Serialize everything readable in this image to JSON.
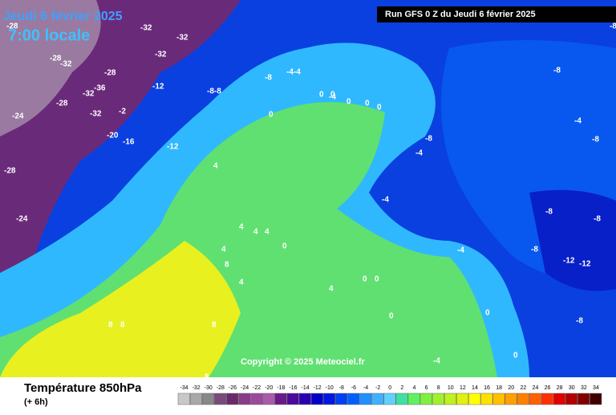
{
  "header": {
    "date": "Jeudi 6 février 2025",
    "time": "7:00 locale",
    "run": "Run GFS 0 Z du Jeudi 6 février 2025"
  },
  "map": {
    "copyright": "Copyright © 2025 Meteociel.fr",
    "isotherm_labels": [
      "-28",
      "-32",
      "-32",
      "-28",
      "-32",
      "-32",
      "-28",
      "-36",
      "-32",
      "-28",
      "-24",
      "-32",
      "-2",
      "-20",
      "-16",
      "-12",
      "-12",
      "-8-8",
      "-8",
      "-4-4",
      "-4",
      "-28",
      "-24",
      "0",
      "0",
      "0",
      "0",
      "0",
      "0",
      "4",
      "4",
      "4",
      "4",
      "0",
      "-4",
      "-4",
      "-8",
      "-4",
      "-8",
      "-8",
      "-12",
      "-12",
      "-8",
      "-8",
      "-4",
      "0",
      "4",
      "4",
      "8",
      "8",
      "8",
      "8",
      "8",
      "-4",
      "0",
      "0",
      "-8",
      "-8",
      "-8",
      "4",
      "0",
      "0"
    ]
  },
  "footer": {
    "title": "Température 850hPa",
    "step": "(+ 6h)"
  },
  "legend": {
    "labels": [
      -34,
      -32,
      -30,
      -28,
      -26,
      -24,
      -22,
      -20,
      -18,
      -16,
      -14,
      -12,
      -10,
      -8,
      -6,
      -4,
      -2,
      0,
      2,
      4,
      6,
      8,
      10,
      12,
      14,
      16,
      18,
      20,
      22,
      24,
      26,
      28,
      30,
      32,
      34
    ],
    "colors": [
      "#c8c8c8",
      "#a8a8a8",
      "#888888",
      "#7a4a7a",
      "#6a2a6a",
      "#8a3a8a",
      "#9a4a9a",
      "#aa5aaa",
      "#6a1a8a",
      "#4a0a9a",
      "#2a00b0",
      "#0000c8",
      "#0018e0",
      "#0040f0",
      "#0060ff",
      "#2090ff",
      "#40b0ff",
      "#60d0ff",
      "#40e0a0",
      "#60f060",
      "#80f040",
      "#a0f030",
      "#c0f020",
      "#e0f010",
      "#ffff00",
      "#ffe000",
      "#ffc000",
      "#ffa000",
      "#ff8000",
      "#ff6000",
      "#ff3000",
      "#e00000",
      "#b00000",
      "#800000",
      "#400000"
    ]
  }
}
